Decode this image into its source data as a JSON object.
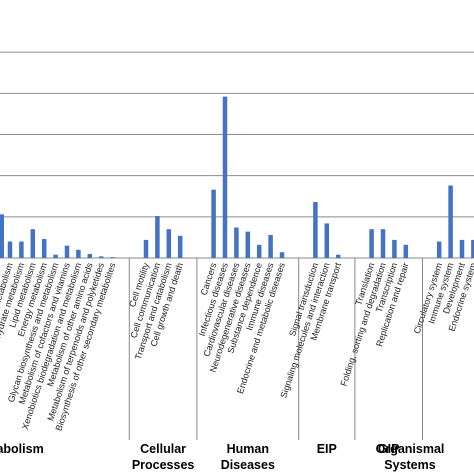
{
  "chart_data": {
    "type": "bar",
    "grid": true,
    "ylim": [
      0,
      300
    ],
    "gridlines": [
      0,
      50,
      100,
      150,
      200,
      250
    ],
    "bar_color": "#4472C4",
    "categories": [
      "Amino acid metabolism",
      "Carbohydrate metabolism",
      "Lipid metabolism",
      "Energy metabolism",
      "Glycan biosynthesis and metabolism",
      "Metabolism of cofactors and vitamins",
      "Xenobiotics biodegradation and metabolism",
      "Metabolism of other amino acids",
      "Metabolism of terpenoids and polyketides",
      "Biosynthesis of other secondary metabolites",
      "Cell motility",
      "Cell communication",
      "Transport and catabolism",
      "Cell growth and death",
      "Cancers",
      "Infectious diseases",
      "Cardiovascular diseases",
      "Neurodegenerative diseases",
      "Substance dependence",
      "Immune diseases",
      "Endocrine and metabolic diseases",
      "Signal transduction",
      "Signaling molecules and interaction",
      "Membrane transport",
      "Translation",
      "Folding, sorting and degradation",
      "Transcription",
      "Replication and repair",
      "Circulatory system",
      "Immune system",
      "Development",
      "Endocrine system"
    ],
    "values": [
      20,
      20,
      35,
      23,
      4,
      15,
      10,
      5,
      2,
      1,
      22,
      51,
      35,
      27,
      83,
      196,
      37,
      32,
      16,
      28,
      7,
      68,
      42,
      4,
      35,
      35,
      22,
      16,
      20,
      88,
      22,
      22
    ],
    "groups": [
      {
        "label_lines": [
          "tabolism"
        ],
        "count": 10
      },
      {
        "label_lines": [
          "Cellular",
          "Processes"
        ],
        "count": 4
      },
      {
        "label_lines": [
          "Human",
          "Diseases"
        ],
        "count": 7
      },
      {
        "label_lines": [
          "EIP"
        ],
        "count": 3
      },
      {
        "label_lines": [
          "GIP"
        ],
        "count": 4
      },
      {
        "label_lines": [
          "Organismal",
          "Systems"
        ],
        "count": 4
      }
    ],
    "partial_first_bar": 53
  }
}
